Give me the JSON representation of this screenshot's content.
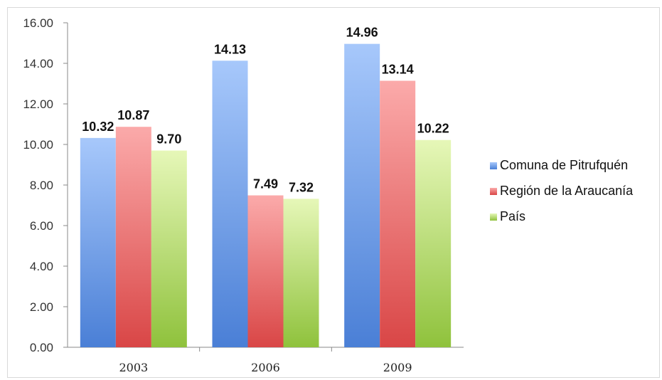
{
  "chart_data": {
    "type": "bar",
    "categories": [
      "2003",
      "2006",
      "2009"
    ],
    "series": [
      {
        "name": "Comuna de Pitrufquén",
        "values": [
          10.32,
          14.13,
          14.96
        ],
        "color": "#4a7fd6",
        "light": "#a7c8fb"
      },
      {
        "name": "Región de la Araucanía",
        "values": [
          10.87,
          7.49,
          13.14
        ],
        "color": "#d94646",
        "light": "#fbaaaa"
      },
      {
        "name": "País",
        "values": [
          9.7,
          7.32,
          10.22
        ],
        "color": "#8fc23c",
        "light": "#e6f7b8"
      }
    ],
    "y_ticks": [
      "0.00",
      "2.00",
      "4.00",
      "6.00",
      "8.00",
      "10.00",
      "12.00",
      "14.00",
      "16.00"
    ],
    "value_labels": [
      [
        "10.32",
        "14.13",
        "14.96"
      ],
      [
        "10.87",
        "7.49",
        "13.14"
      ],
      [
        "9.70",
        "7.32",
        "10.22"
      ]
    ],
    "ylim": [
      0,
      16
    ],
    "legend_position": "right",
    "grid": false
  }
}
